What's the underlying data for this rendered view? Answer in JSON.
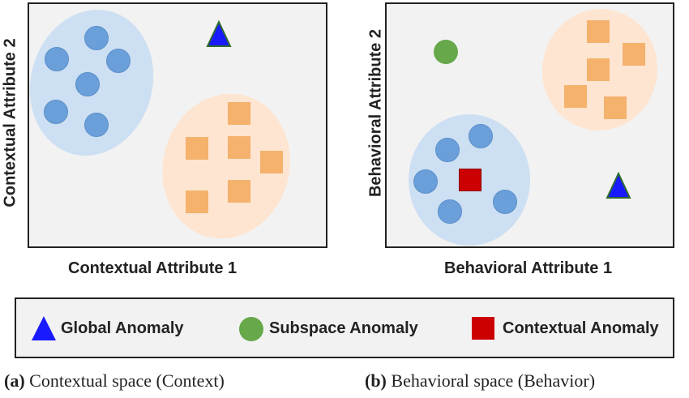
{
  "panels": {
    "left": {
      "x_label": "Contextual Attribute 1",
      "y_label": "Contextual Attribute 2"
    },
    "right": {
      "x_label": "Behavioral Attribute 1",
      "y_label": "Behavioral Attribute 2"
    }
  },
  "legend": {
    "global": "Global Anomaly",
    "subspace": "Subspace Anomaly",
    "contextual": "Contextual Anomaly"
  },
  "captions": {
    "a_tag": "(a)",
    "a_text": "Contextual space (Context)",
    "b_tag": "(b)",
    "b_text": "Behavioral space (Behavior)"
  },
  "colors": {
    "normal_circle": "#6a9fda",
    "normal_square": "#f4b26d",
    "global_anomaly": "#1a1aff",
    "subspace_anomaly": "#66a84a",
    "contextual_anomaly": "#cc0000"
  },
  "icons": {
    "global": "triangle-icon",
    "subspace": "circle-icon",
    "contextual": "square-icon"
  }
}
